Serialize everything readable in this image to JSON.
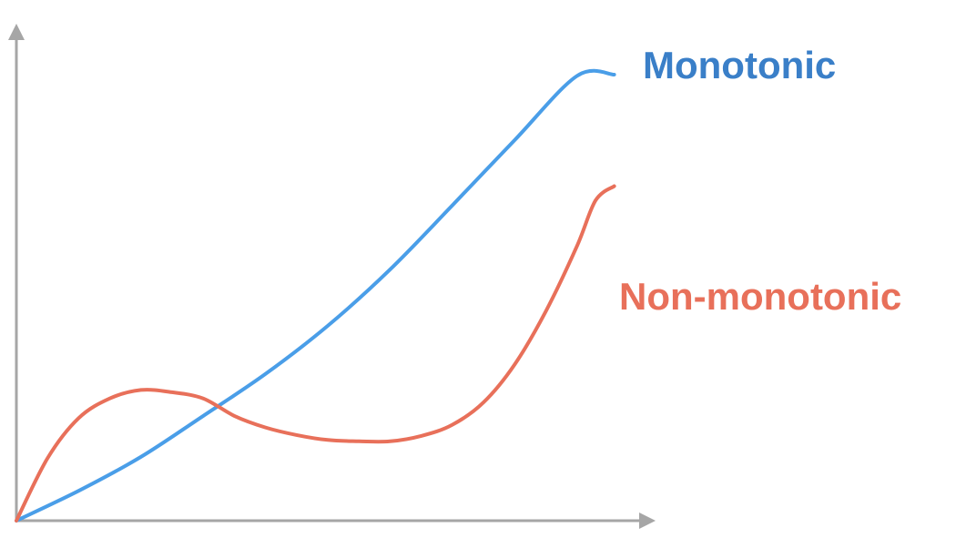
{
  "chart_data": {
    "type": "line",
    "title": "",
    "xlabel": "",
    "ylabel": "",
    "axes": {
      "color": "#a6a6a6",
      "arrowheads": true,
      "ticks": false,
      "grid": false
    },
    "xlim": [
      0,
      1
    ],
    "ylim": [
      0,
      1
    ],
    "series": [
      {
        "name": "Monotonic",
        "color": "#4a9ee8",
        "label_color": "#3a7fc8",
        "points": [
          [
            0.0,
            0.0
          ],
          [
            0.1,
            0.067
          ],
          [
            0.2,
            0.143
          ],
          [
            0.3,
            0.235
          ],
          [
            0.4,
            0.329
          ],
          [
            0.5,
            0.437
          ],
          [
            0.6,
            0.563
          ],
          [
            0.7,
            0.707
          ],
          [
            0.8,
            0.853
          ],
          [
            0.9,
            0.997
          ],
          [
            0.96,
            1.0
          ]
        ]
      },
      {
        "name": "Non-monotonic",
        "color": "#e8705a",
        "label_color": "#e8705a",
        "points": [
          [
            0.0,
            0.0
          ],
          [
            0.05,
            0.14
          ],
          [
            0.1,
            0.23
          ],
          [
            0.15,
            0.274
          ],
          [
            0.2,
            0.293
          ],
          [
            0.25,
            0.288
          ],
          [
            0.3,
            0.274
          ],
          [
            0.35,
            0.235
          ],
          [
            0.4,
            0.209
          ],
          [
            0.45,
            0.192
          ],
          [
            0.5,
            0.181
          ],
          [
            0.55,
            0.178
          ],
          [
            0.6,
            0.178
          ],
          [
            0.65,
            0.19
          ],
          [
            0.7,
            0.215
          ],
          [
            0.75,
            0.265
          ],
          [
            0.8,
            0.35
          ],
          [
            0.85,
            0.469
          ],
          [
            0.9,
            0.615
          ],
          [
            0.93,
            0.718
          ],
          [
            0.96,
            0.75
          ]
        ]
      }
    ]
  }
}
